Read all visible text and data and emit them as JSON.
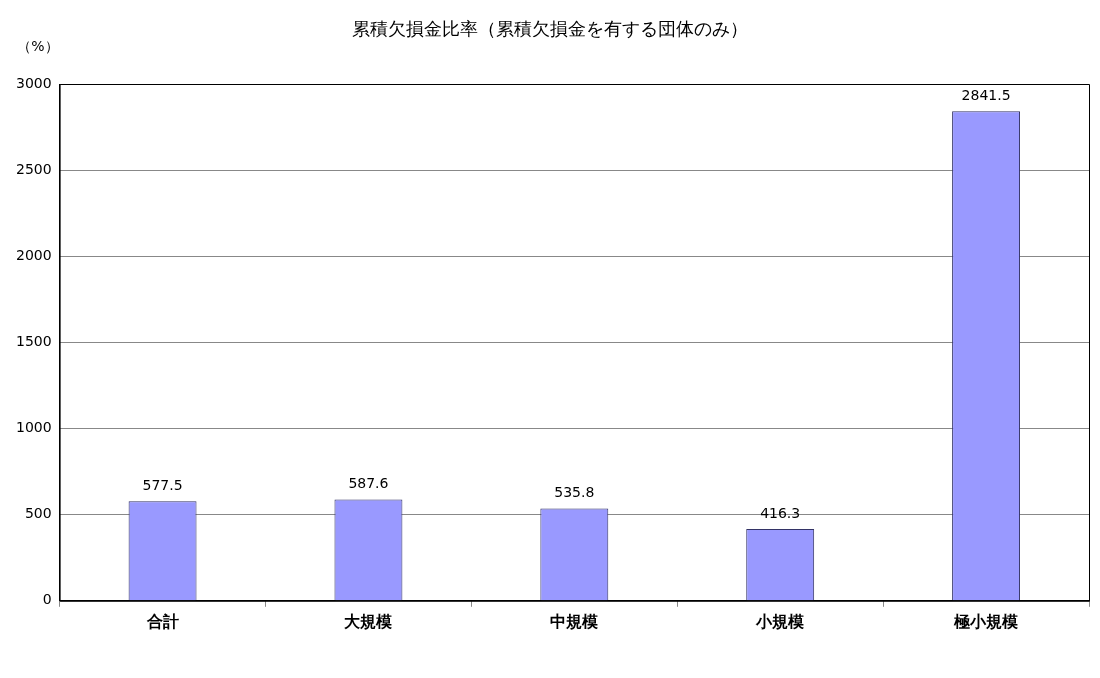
{
  "chart_data": {
    "type": "bar",
    "title": "累積欠損金比率（累積欠損金を有する団体のみ）",
    "ylabel": "（%）",
    "categories": [
      "合計",
      "大規模",
      "中規模",
      "小規模",
      "極小規模"
    ],
    "values": [
      577.5,
      587.6,
      535.8,
      416.3,
      2841.5
    ],
    "color": "#9999ff",
    "ylim": [
      0,
      3000
    ],
    "yticks": [
      0,
      500,
      1000,
      1500,
      2000,
      2500,
      3000
    ],
    "grid": "y",
    "data_labels": true
  }
}
